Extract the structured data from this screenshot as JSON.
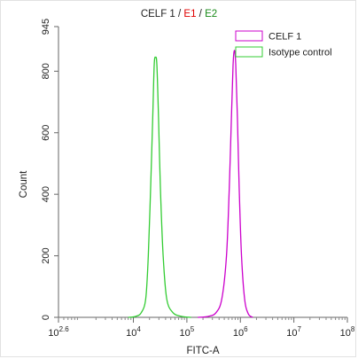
{
  "chart_data": {
    "type": "line",
    "title_parts": [
      {
        "text": "CELF 1 / ",
        "color": "#222222"
      },
      {
        "text": "E1",
        "color": "#e00000"
      },
      {
        "text": " / ",
        "color": "#222222"
      },
      {
        "text": "E2",
        "color": "#1a8a1a"
      }
    ],
    "xlabel": "FITC-A",
    "ylabel": "Count",
    "xscale": "log",
    "xlim": [
      398,
      100000000
    ],
    "ylim": [
      0,
      945
    ],
    "x_ticks": [
      {
        "value": 398,
        "base": "10",
        "exp": "2.6"
      },
      {
        "value": 10000,
        "base": "10",
        "exp": "4"
      },
      {
        "value": 100000,
        "base": "10",
        "exp": "5"
      },
      {
        "value": 1000000,
        "base": "10",
        "exp": "6"
      },
      {
        "value": 10000000,
        "base": "10",
        "exp": "7"
      },
      {
        "value": 100000000,
        "base": "10",
        "exp": "8"
      }
    ],
    "y_ticks": [
      0,
      200,
      400,
      600,
      800,
      945
    ],
    "legend_position": "top-right",
    "grid": false,
    "series": [
      {
        "name": "CELF 1",
        "color": "#cc00cc",
        "points": [
          [
            160000,
            0
          ],
          [
            250000,
            3
          ],
          [
            350000,
            15
          ],
          [
            450000,
            60
          ],
          [
            550000,
            200
          ],
          [
            620000,
            420
          ],
          [
            680000,
            650
          ],
          [
            730000,
            820
          ],
          [
            775000,
            868
          ],
          [
            820000,
            820
          ],
          [
            880000,
            650
          ],
          [
            950000,
            420
          ],
          [
            1050000,
            200
          ],
          [
            1200000,
            60
          ],
          [
            1400000,
            12
          ],
          [
            1700000,
            0
          ]
        ]
      },
      {
        "name": "Isotype control",
        "color": "#33cc33",
        "points": [
          [
            8000,
            0
          ],
          [
            11000,
            3
          ],
          [
            14000,
            15
          ],
          [
            17000,
            60
          ],
          [
            19000,
            200
          ],
          [
            21000,
            420
          ],
          [
            23000,
            650
          ],
          [
            24500,
            820
          ],
          [
            26000,
            845
          ],
          [
            27500,
            820
          ],
          [
            29500,
            650
          ],
          [
            32000,
            420
          ],
          [
            36000,
            200
          ],
          [
            42000,
            60
          ],
          [
            55000,
            15
          ],
          [
            80000,
            3
          ],
          [
            120000,
            0
          ]
        ]
      }
    ]
  }
}
